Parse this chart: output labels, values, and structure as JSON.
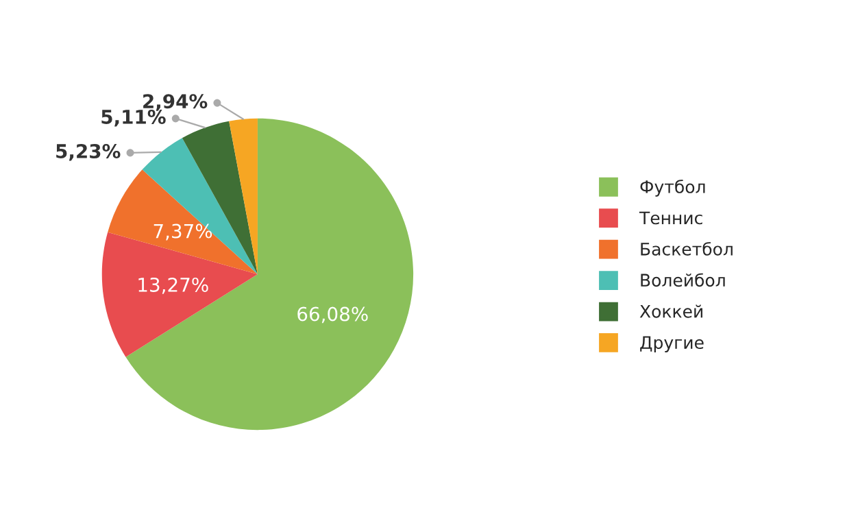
{
  "chart_data": {
    "type": "pie",
    "categories": [
      "Футбол",
      "Теннис",
      "Баскетбол",
      "Волейбол",
      "Хоккей",
      "Другие"
    ],
    "values": [
      66.08,
      13.27,
      7.37,
      5.23,
      5.11,
      2.94
    ],
    "value_labels": [
      "66,08%",
      "13,27%",
      "7,37%",
      "5,23%",
      "5,11%",
      "2,94%"
    ],
    "colors": [
      "#8bc05a",
      "#e84c4f",
      "#f0712c",
      "#4dbfb4",
      "#3f6f35",
      "#f6a623"
    ],
    "legend": "right"
  }
}
